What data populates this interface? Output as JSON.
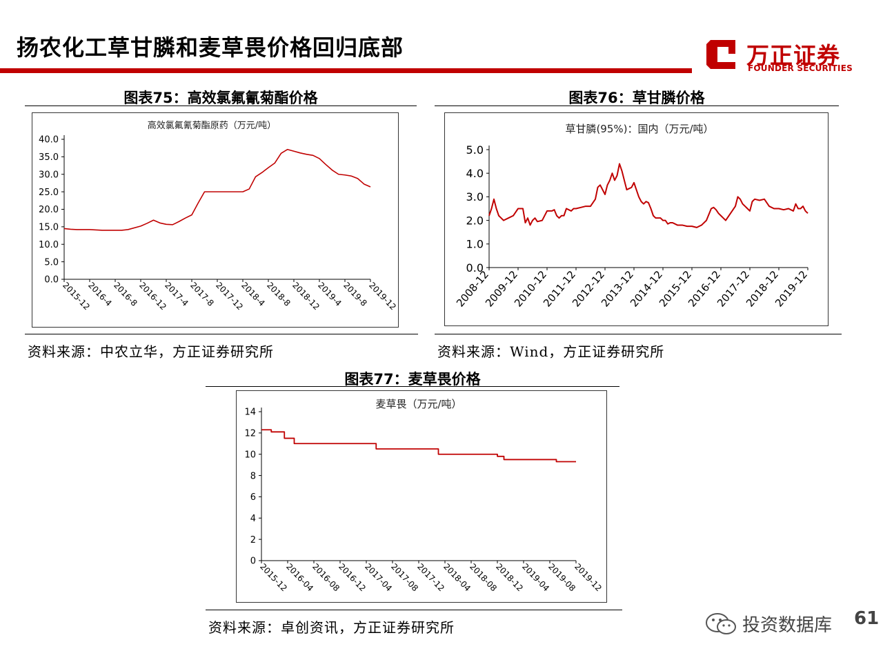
{
  "header": {
    "title": "扬农化工草甘膦和麦草畏价格回归底部",
    "logo_cn": "万正证券",
    "logo_en": "FOUNDER SECURITIES"
  },
  "colors": {
    "accent": "#c00000",
    "line": "#c00000",
    "axis": "#000000"
  },
  "fig75": {
    "title": "图表75：高效氯氟氰菊酯价格",
    "source": "资料来源：中农立华，方正证券研究所"
  },
  "fig76": {
    "title": "图表76：草甘膦价格",
    "source": "资料来源：Wind，方正证券研究所"
  },
  "fig77": {
    "title": "图表77：麦草畏价格",
    "source": "资料来源：卓创资讯，方正证券研究所"
  },
  "watermark": {
    "text": "投资数据库",
    "icon": "wechat-icon"
  },
  "page_number": "61",
  "chart_data": [
    {
      "id": "fig75",
      "type": "line",
      "title": "高效氯氟氰菊酯原药（万元/吨）",
      "ylim": [
        0,
        40
      ],
      "yticks": [
        "0.0",
        "5.0",
        "10.0",
        "15.0",
        "20.0",
        "25.0",
        "30.0",
        "35.0",
        "40.0"
      ],
      "xlim": [
        0,
        48
      ],
      "xticks": [
        {
          "label": "2015-12",
          "x": 0
        },
        {
          "label": "2016-4",
          "x": 4
        },
        {
          "label": "2016-8",
          "x": 8
        },
        {
          "label": "2016-12",
          "x": 12
        },
        {
          "label": "2017-4",
          "x": 16
        },
        {
          "label": "2017-8",
          "x": 20
        },
        {
          "label": "2017-12",
          "x": 24
        },
        {
          "label": "2018-4",
          "x": 28
        },
        {
          "label": "2018-8",
          "x": 32
        },
        {
          "label": "2018-12",
          "x": 36
        },
        {
          "label": "2019-4",
          "x": 40
        },
        {
          "label": "2019-8",
          "x": 44
        },
        {
          "label": "2019-12",
          "x": 48
        }
      ],
      "series": [
        {
          "x": [
            0,
            1,
            2,
            4,
            6,
            7,
            9,
            10,
            12,
            13,
            14,
            15,
            16,
            17,
            18,
            19,
            20,
            21,
            22,
            23,
            24,
            25,
            26,
            27,
            28,
            29,
            30,
            31,
            32,
            33,
            34,
            35,
            36,
            37,
            38,
            39,
            40,
            41,
            42,
            43,
            44,
            45,
            46,
            47,
            48
          ],
          "y": [
            14.5,
            14.3,
            14.2,
            14.2,
            14.0,
            14.0,
            14.0,
            14.2,
            15.2,
            16.0,
            16.9,
            16.1,
            15.7,
            15.6,
            16.5,
            17.5,
            18.4,
            21.8,
            25.0,
            25.0,
            25.0,
            25.0,
            25.0,
            25.0,
            25.0,
            25.8,
            29.3,
            30.5,
            31.9,
            33.2,
            36.0,
            37.1,
            36.6,
            36.1,
            35.7,
            35.4,
            34.5,
            32.8,
            31.2,
            30.0,
            29.8,
            29.5,
            28.8,
            27.2,
            26.4
          ]
        }
      ]
    },
    {
      "id": "fig76",
      "type": "line",
      "title": "草甘膦(95%)：国内（万元/吨）",
      "ylim": [
        0,
        5
      ],
      "yticks": [
        "0.0",
        "1.0",
        "2.0",
        "3.0",
        "4.0",
        "5.0"
      ],
      "xlim": [
        0,
        132
      ],
      "xticks": [
        {
          "label": "2008-12",
          "x": 0
        },
        {
          "label": "2009-12",
          "x": 12
        },
        {
          "label": "2010-12",
          "x": 24
        },
        {
          "label": "2011-12",
          "x": 36
        },
        {
          "label": "2012-12",
          "x": 48
        },
        {
          "label": "2013-12",
          "x": 60
        },
        {
          "label": "2014-12",
          "x": 72
        },
        {
          "label": "2015-12",
          "x": 84
        },
        {
          "label": "2016-12",
          "x": 96
        },
        {
          "label": "2017-12",
          "x": 108
        },
        {
          "label": "2018-12",
          "x": 120
        },
        {
          "label": "2019-12",
          "x": 132
        }
      ],
      "series": [
        {
          "x": [
            0,
            1,
            2,
            3,
            4,
            5,
            6,
            8,
            10,
            12,
            13,
            14,
            15,
            16,
            17,
            18,
            19,
            20,
            22,
            24,
            25,
            26,
            27,
            28,
            29,
            30,
            31,
            32,
            33,
            34,
            35,
            36,
            38,
            40,
            42,
            44,
            45,
            46,
            47,
            48,
            49,
            50,
            51,
            52,
            53,
            54,
            55,
            56,
            57,
            58,
            59,
            60,
            61,
            62,
            63,
            64,
            65,
            66,
            67,
            68,
            69,
            70,
            71,
            72,
            73,
            74,
            75,
            76,
            78,
            80,
            82,
            84,
            86,
            88,
            90,
            92,
            93,
            94,
            95,
            96,
            97,
            98,
            100,
            102,
            103,
            104,
            105,
            106,
            107,
            108,
            109,
            110,
            112,
            114,
            116,
            118,
            120,
            122,
            124,
            126,
            127,
            128,
            129,
            130,
            131,
            132
          ],
          "y": [
            2.2,
            2.5,
            2.9,
            2.5,
            2.2,
            2.1,
            2.0,
            2.1,
            2.2,
            2.5,
            2.5,
            2.5,
            1.9,
            2.1,
            1.8,
            2.0,
            2.1,
            1.95,
            2.0,
            2.4,
            2.4,
            2.4,
            2.45,
            2.2,
            2.1,
            2.2,
            2.2,
            2.5,
            2.45,
            2.4,
            2.5,
            2.5,
            2.55,
            2.6,
            2.6,
            2.9,
            3.4,
            3.5,
            3.3,
            3.1,
            3.5,
            3.7,
            4.0,
            3.7,
            3.9,
            4.4,
            4.1,
            3.7,
            3.3,
            3.35,
            3.4,
            3.6,
            3.3,
            3.0,
            2.8,
            2.7,
            2.8,
            2.75,
            2.5,
            2.2,
            2.1,
            2.1,
            2.1,
            2.0,
            2.0,
            1.85,
            1.9,
            1.9,
            1.8,
            1.8,
            1.75,
            1.75,
            1.7,
            1.8,
            2.0,
            2.5,
            2.55,
            2.45,
            2.3,
            2.2,
            2.1,
            2.0,
            2.3,
            2.6,
            3.0,
            2.9,
            2.7,
            2.6,
            2.5,
            2.4,
            2.8,
            2.9,
            2.85,
            2.9,
            2.6,
            2.5,
            2.5,
            2.45,
            2.5,
            2.4,
            2.7,
            2.5,
            2.5,
            2.6,
            2.4,
            2.3
          ]
        }
      ]
    },
    {
      "id": "fig77",
      "type": "line",
      "title": "麦草畏（万元/吨）",
      "ylim": [
        0,
        14
      ],
      "yticks": [
        "0",
        "2",
        "4",
        "6",
        "8",
        "10",
        "12",
        "14"
      ],
      "xlim": [
        0,
        48
      ],
      "xticks": [
        {
          "label": "2015-12",
          "x": 0
        },
        {
          "label": "2016-04",
          "x": 4
        },
        {
          "label": "2016-08",
          "x": 8
        },
        {
          "label": "2016-12",
          "x": 12
        },
        {
          "label": "2017-04",
          "x": 16
        },
        {
          "label": "2017-08",
          "x": 20
        },
        {
          "label": "2017-12",
          "x": 24
        },
        {
          "label": "2018-04",
          "x": 28
        },
        {
          "label": "2018-08",
          "x": 32
        },
        {
          "label": "2018-12",
          "x": 36
        },
        {
          "label": "2019-04",
          "x": 40
        },
        {
          "label": "2019-08",
          "x": 44
        },
        {
          "label": "2019-12",
          "x": 48
        }
      ],
      "step": true,
      "series": [
        {
          "x": [
            0,
            1.5,
            3.5,
            5,
            17.5,
            27,
            36,
            37,
            45,
            48
          ],
          "y": [
            12.3,
            12.1,
            11.5,
            11.0,
            10.5,
            10.0,
            9.8,
            9.5,
            9.3,
            9.3
          ]
        }
      ]
    }
  ]
}
